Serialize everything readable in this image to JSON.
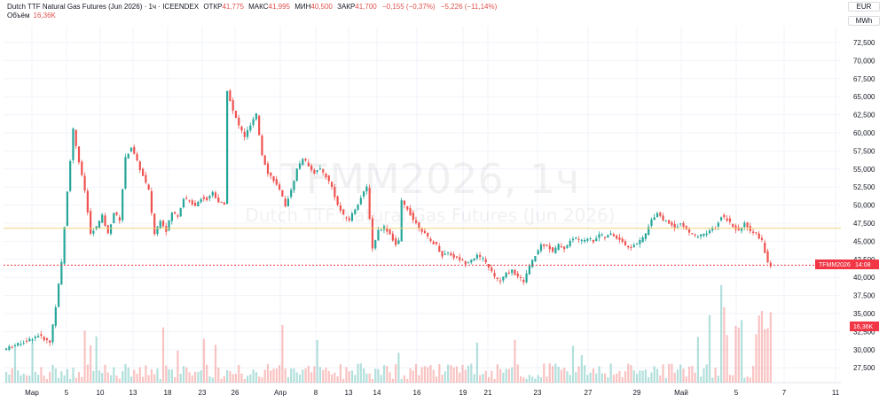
{
  "header": {
    "title": "Dutch TTF Natural Gas Futures (Jun 2026) · 1ч · ICEENDEX",
    "open_label": "ОТКР",
    "open_value": "41,775",
    "high_label": "МАКС",
    "high_value": "41,995",
    "low_label": "МИН",
    "low_value": "40,500",
    "close_label": "ЗАКР",
    "close_value": "41,700",
    "change": "−0,155 (−0,37%)",
    "change2": "−5,226 (−11,14%)",
    "volume_label": "Объём",
    "volume_value": "16,36K"
  },
  "units": {
    "currency": "EUR",
    "unit": "MWh"
  },
  "watermark": {
    "symbol": "TFMM2026, 1ч",
    "name": "Dutch TTF Natural Gas Futures (Jun 2026)"
  },
  "tags": {
    "symbol": "TFMM2026",
    "countdown": "14:08",
    "volume": "16,36K"
  },
  "chart_data": {
    "type": "candlestick",
    "interval": "1ч",
    "ylim": [
      25000,
      75000
    ],
    "y_ticks": [
      "72,500",
      "70,000",
      "67,500",
      "65,000",
      "62,500",
      "60,000",
      "57,500",
      "55,000",
      "52,500",
      "50,000",
      "47,500",
      "45,000",
      "42,500",
      "40,000",
      "37,500",
      "35,000",
      "32,500",
      "30,000",
      "27,500"
    ],
    "x_ticks": [
      "Мар",
      "5",
      "10",
      "13",
      "18",
      "23",
      "26",
      "Апр",
      "8",
      "13",
      "14",
      "16",
      "19",
      "21",
      "23",
      "27",
      "29",
      "Май",
      "5",
      "7",
      "11"
    ],
    "last_price": 41700,
    "reference_level": 46800,
    "price_path": [
      [
        0,
        30.0
      ],
      [
        4,
        30.6
      ],
      [
        8,
        31.2
      ],
      [
        12,
        32.0
      ],
      [
        16,
        31.0
      ],
      [
        18,
        36.0
      ],
      [
        20,
        42.0
      ],
      [
        22,
        52.0
      ],
      [
        24,
        60.5
      ],
      [
        26,
        56.0
      ],
      [
        28,
        52.0
      ],
      [
        30,
        46.0
      ],
      [
        32,
        47.0
      ],
      [
        34,
        48.5
      ],
      [
        36,
        46.0
      ],
      [
        38,
        49.0
      ],
      [
        40,
        48.0
      ],
      [
        42,
        56.5
      ],
      [
        44,
        58.0
      ],
      [
        46,
        56.0
      ],
      [
        48,
        54.0
      ],
      [
        50,
        52.0
      ],
      [
        52,
        46.0
      ],
      [
        54,
        48.0
      ],
      [
        56,
        46.5
      ],
      [
        58,
        49.0
      ],
      [
        60,
        48.5
      ],
      [
        62,
        51.0
      ],
      [
        64,
        50.5
      ],
      [
        66,
        50.0
      ],
      [
        68,
        51.0
      ],
      [
        70,
        50.8
      ],
      [
        72,
        51.8
      ],
      [
        74,
        50.5
      ],
      [
        76,
        50.0
      ],
      [
        77,
        66.0
      ],
      [
        79,
        63.0
      ],
      [
        81,
        61.0
      ],
      [
        83,
        59.5
      ],
      [
        85,
        61.0
      ],
      [
        87,
        62.5
      ],
      [
        89,
        57.0
      ],
      [
        91,
        54.5
      ],
      [
        93,
        53.5
      ],
      [
        95,
        52.0
      ],
      [
        97,
        50.0
      ],
      [
        99,
        52.0
      ],
      [
        101,
        55.0
      ],
      [
        103,
        56.5
      ],
      [
        105,
        55.5
      ],
      [
        107,
        54.5
      ],
      [
        109,
        55.0
      ],
      [
        111,
        54.0
      ],
      [
        113,
        52.5
      ],
      [
        115,
        50.0
      ],
      [
        117,
        48.5
      ],
      [
        119,
        48.0
      ],
      [
        121,
        49.5
      ],
      [
        123,
        51.0
      ],
      [
        125,
        52.5
      ],
      [
        127,
        44.0
      ],
      [
        129,
        46.5
      ],
      [
        131,
        47.0
      ],
      [
        133,
        46.0
      ],
      [
        135,
        44.5
      ],
      [
        136,
        45.0
      ],
      [
        137,
        50.5
      ],
      [
        139,
        49.5
      ],
      [
        141,
        48.0
      ],
      [
        143,
        47.0
      ],
      [
        145,
        46.0
      ],
      [
        147,
        45.0
      ],
      [
        149,
        44.5
      ],
      [
        151,
        43.0
      ],
      [
        153,
        43.5
      ],
      [
        155,
        42.8
      ],
      [
        157,
        42.5
      ],
      [
        159,
        42.0
      ],
      [
        161,
        42.5
      ],
      [
        163,
        43.0
      ],
      [
        165,
        42.5
      ],
      [
        167,
        41.5
      ],
      [
        169,
        40.0
      ],
      [
        171,
        39.5
      ],
      [
        173,
        40.5
      ],
      [
        175,
        41.0
      ],
      [
        177,
        40.0
      ],
      [
        179,
        39.5
      ],
      [
        181,
        41.5
      ],
      [
        183,
        43.0
      ],
      [
        185,
        44.5
      ],
      [
        187,
        44.5
      ],
      [
        189,
        43.5
      ],
      [
        191,
        44.5
      ],
      [
        193,
        44.0
      ],
      [
        195,
        45.0
      ],
      [
        197,
        45.5
      ],
      [
        199,
        45.0
      ],
      [
        201,
        45.5
      ],
      [
        203,
        45.0
      ],
      [
        205,
        46.0
      ],
      [
        207,
        45.5
      ],
      [
        209,
        46.0
      ],
      [
        211,
        45.5
      ],
      [
        213,
        45.0
      ],
      [
        215,
        44.0
      ],
      [
        217,
        44.5
      ],
      [
        219,
        45.0
      ],
      [
        221,
        46.0
      ],
      [
        223,
        48.0
      ],
      [
        225,
        49.0
      ],
      [
        227,
        48.0
      ],
      [
        229,
        47.5
      ],
      [
        231,
        47.0
      ],
      [
        233,
        47.5
      ],
      [
        235,
        46.5
      ],
      [
        237,
        46.0
      ],
      [
        239,
        45.5
      ],
      [
        241,
        46.0
      ],
      [
        243,
        46.5
      ],
      [
        245,
        47.0
      ],
      [
        247,
        48.5
      ],
      [
        249,
        48.0
      ],
      [
        251,
        47.0
      ],
      [
        253,
        46.5
      ],
      [
        255,
        47.5
      ],
      [
        257,
        46.5
      ],
      [
        259,
        46.0
      ],
      [
        261,
        45.0
      ],
      [
        263,
        42.0
      ],
      [
        264,
        41.7
      ]
    ],
    "volume_peak_label": "16,36K"
  }
}
